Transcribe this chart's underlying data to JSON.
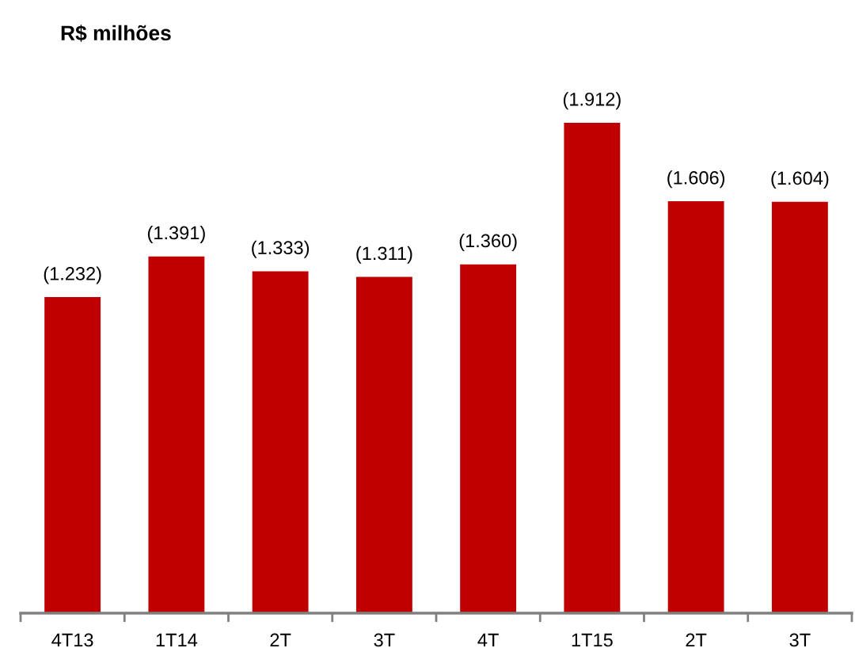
{
  "chart_data": {
    "type": "bar",
    "title": "R$ milhões",
    "categories": [
      "4T13",
      "1T14",
      "2T",
      "3T",
      "4T",
      "1T15",
      "2T",
      "3T"
    ],
    "values": [
      1232,
      1391,
      1333,
      1311,
      1360,
      1912,
      1606,
      1604
    ],
    "value_labels": [
      "(1.232)",
      "(1.391)",
      "(1.333)",
      "(1.311)",
      "(1.360)",
      "(1.912)",
      "(1.606)",
      "(1.604)"
    ],
    "color": "#c00000",
    "tick_labels": "x"
  }
}
